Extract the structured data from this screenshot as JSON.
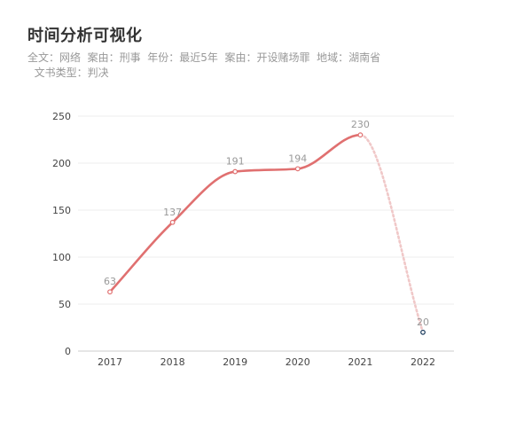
{
  "header": {
    "title": "时间分析可视化",
    "subtitle": "全文：网络  案由：刑事  年份：最近5年  案由：开设赌场罪  地域：湖南省\n  文书类型：判决"
  },
  "colors": {
    "line": "#e07070",
    "line_dotted": "#f0c8c8",
    "point_fill": "#ffffff",
    "last_point_stroke": "#1a3a5c",
    "grid": "#eeeeee",
    "axis": "#cccccc"
  },
  "chart_data": {
    "type": "line",
    "title": "时间分析可视化",
    "categories": [
      "2017",
      "2018",
      "2019",
      "2020",
      "2021",
      "2022"
    ],
    "values": [
      63,
      137,
      191,
      194,
      230,
      20
    ],
    "yticks": [
      0,
      50,
      100,
      150,
      200,
      250
    ],
    "ylim": [
      0,
      250
    ],
    "xlabel": "",
    "ylabel": "",
    "grid": true,
    "smooth": true,
    "last_segment_style": "dotted"
  }
}
